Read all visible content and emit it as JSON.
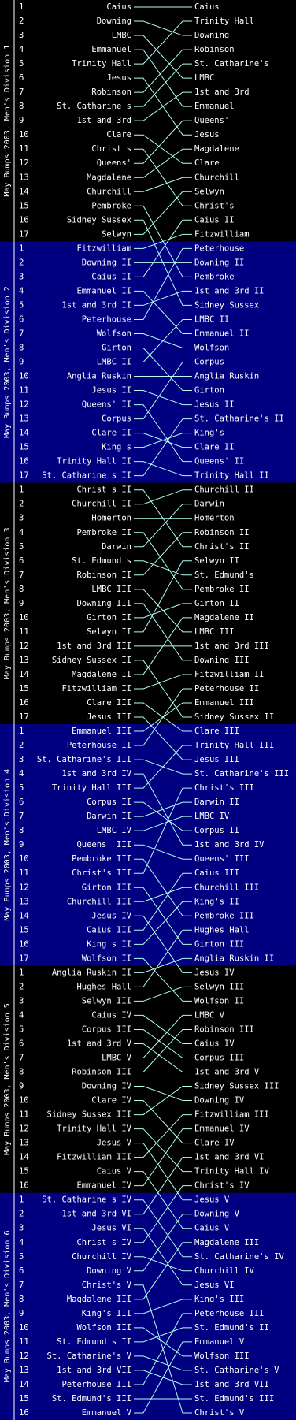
{
  "divisions": [
    {
      "title": "May Bumps 2003, Men's Division 1",
      "numbers": [
        1,
        2,
        3,
        4,
        5,
        6,
        7,
        8,
        9,
        10,
        11,
        12,
        13,
        14,
        15,
        16,
        17
      ],
      "start": [
        "Caius",
        "Downing",
        "LMBC",
        "Emmanuel",
        "Trinity Hall",
        "Jesus",
        "Robinson",
        "St. Catharine's",
        "1st and 3rd",
        "Clare",
        "Christ's",
        "Queens'",
        "Magdalene",
        "Churchill",
        "Pembroke",
        "Sidney Sussex",
        "Selwyn"
      ],
      "finish": [
        "Caius",
        "Trinity Hall",
        "Downing",
        "Robinson",
        "St. Catharine's",
        "LMBC",
        "1st and 3rd",
        "Emmanuel",
        "Queens'",
        "Jesus",
        "Magdalene",
        "Clare",
        "Churchill",
        "Selwyn",
        "Christ's",
        "Caius II",
        "Fitzwilliam"
      ]
    },
    {
      "title": "May Bumps 2003, Men's Division 2",
      "numbers": [
        1,
        2,
        3,
        4,
        5,
        6,
        7,
        8,
        9,
        10,
        11,
        12,
        13,
        14,
        15,
        16,
        17
      ],
      "start": [
        "Fitzwilliam",
        "Downing II",
        "Caius II",
        "Emmanuel II",
        "1st and 3rd II",
        "Peterhouse",
        "Wolfson",
        "Girton",
        "LMBC II",
        "Anglia Ruskin",
        "Jesus II",
        "Queens' II",
        "Corpus",
        "Clare II",
        "King's",
        "Trinity Hall II",
        "St. Catharine's II"
      ],
      "finish": [
        "Peterhouse",
        "Downing II",
        "Pembroke",
        "1st and 3rd II",
        "Sidney Sussex",
        "LMBC II",
        "Emmanuel II",
        "Wolfson",
        "Corpus",
        "Anglia Ruskin",
        "Girton",
        "Jesus II",
        "St. Catharine's II",
        "King's",
        "Clare II",
        "Queens' II",
        "Trinity Hall II"
      ]
    },
    {
      "title": "May Bumps 2003, Men's Division 3",
      "numbers": [
        1,
        2,
        3,
        4,
        5,
        6,
        7,
        8,
        9,
        10,
        11,
        12,
        13,
        14,
        15,
        16,
        17
      ],
      "start": [
        "Christ's II",
        "Churchill II",
        "Homerton",
        "Pembroke II",
        "Darwin",
        "St. Edmund's",
        "Robinson II",
        "LMBC III",
        "Downing III",
        "Girton II",
        "Selwyn II",
        "1st and 3rd III",
        "Sidney Sussex II",
        "Magdalene II",
        "Fitzwilliam II",
        "Clare III",
        "Jesus III"
      ],
      "finish": [
        "Churchill II",
        "Darwin",
        "Homerton",
        "Robinson II",
        "Christ's II",
        "Selwyn II",
        "St. Edmund's",
        "Pembroke II",
        "Girton II",
        "Magdalene II",
        "LMBC III",
        "1st and 3rd III",
        "Downing III",
        "Fitzwilliam II",
        "Peterhouse II",
        "Emmanuel III",
        "Sidney Sussex II"
      ]
    },
    {
      "title": "May Bumps 2003, Men's Division 4",
      "numbers": [
        1,
        2,
        3,
        4,
        5,
        6,
        7,
        8,
        9,
        10,
        11,
        12,
        13,
        14,
        15,
        16,
        17
      ],
      "start": [
        "Emmanuel III",
        "Peterhouse II",
        "St. Catharine's III",
        "1st and 3rd IV",
        "Trinity Hall III",
        "Corpus II",
        "Darwin II",
        "LMBC IV",
        "Queens' III",
        "Pembroke III",
        "Christ's III",
        "Girton III",
        "Churchill III",
        "Jesus IV",
        "Caius III",
        "King's II",
        "Wolfson II"
      ],
      "finish": [
        "Clare III",
        "Trinity Hall III",
        "Jesus III",
        "St. Catharine's III",
        "Christ's III",
        "Darwin II",
        "LMBC IV",
        "Corpus II",
        "1st and 3rd IV",
        "Queens' III",
        "Caius III",
        "Churchill III",
        "King's II",
        "Pembroke III",
        "Hughes Hall",
        "Girton III",
        "Anglia Ruskin II"
      ]
    },
    {
      "title": "May Bumps 2003, Men's Division 5",
      "numbers": [
        1,
        2,
        3,
        4,
        5,
        6,
        7,
        8,
        9,
        10,
        11,
        12,
        13,
        14,
        15,
        16
      ],
      "start": [
        "Anglia Ruskin II",
        "Hughes Hall",
        "Selwyn III",
        "Caius IV",
        "Corpus III",
        "1st and 3rd V",
        "LMBC V",
        "Robinson III",
        "Downing IV",
        "Clare IV",
        "Sidney Sussex III",
        "Trinity Hall IV",
        "Jesus V",
        "Fitzwilliam III",
        "Caius V",
        "Emmanuel IV"
      ],
      "finish": [
        "Jesus IV",
        "Selwyn III",
        "Wolfson II",
        "LMBC V",
        "Robinson III",
        "Caius IV",
        "Corpus III",
        "1st and 3rd V",
        "Sidney Sussex III",
        "Downing IV",
        "Fitzwilliam III",
        "Emmanuel IV",
        "Clare IV",
        "1st and 3rd VI",
        "Trinity Hall IV",
        "Christ's IV"
      ]
    },
    {
      "title": "May Bumps 2003, Men's Division 6",
      "numbers": [
        1,
        2,
        3,
        4,
        5,
        6,
        7,
        8,
        9,
        10,
        11,
        12,
        13,
        14,
        15,
        16
      ],
      "start": [
        "St. Catharine's IV",
        "1st and 3rd VI",
        "Jesus VI",
        "Christ's IV",
        "Churchill IV",
        "Downing V",
        "Christ's V",
        "Magdalene III",
        "King's III",
        "Wolfson III",
        "St. Edmund's II",
        "St. Catharine's V",
        "1st and 3rd VII",
        "Peterhouse III",
        "St. Edmund's III",
        "Emmanuel V"
      ],
      "finish": [
        "Jesus V",
        "Downing V",
        "Caius V",
        "Magdalene III",
        "St. Catharine's IV",
        "Churchill IV",
        "Jesus VI",
        "King's III",
        "Peterhouse III",
        "St. Edmund's II",
        "Emmanuel V",
        "Wolfson III",
        "St. Catharine's V",
        "1st and 3rd VII",
        "St. Edmund's III",
        "Christ's V"
      ]
    }
  ]
}
